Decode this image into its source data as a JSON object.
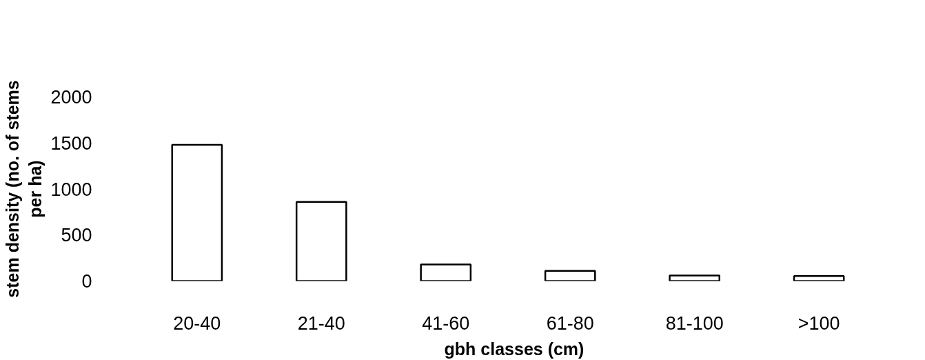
{
  "chart_data": {
    "type": "bar",
    "categories": [
      "20-40",
      "21-40",
      "41-60",
      "61-80",
      "81-100",
      ">100"
    ],
    "values": [
      1480,
      860,
      180,
      110,
      60,
      55
    ],
    "color": "#ffffff",
    "xlabel": "gbh classes (cm)",
    "ylabel": "stem density (no. of stems\nper ha)",
    "ylim": [
      0,
      2000
    ],
    "yticks": [
      0,
      500,
      1000,
      1500,
      2000
    ],
    "grid": false
  }
}
